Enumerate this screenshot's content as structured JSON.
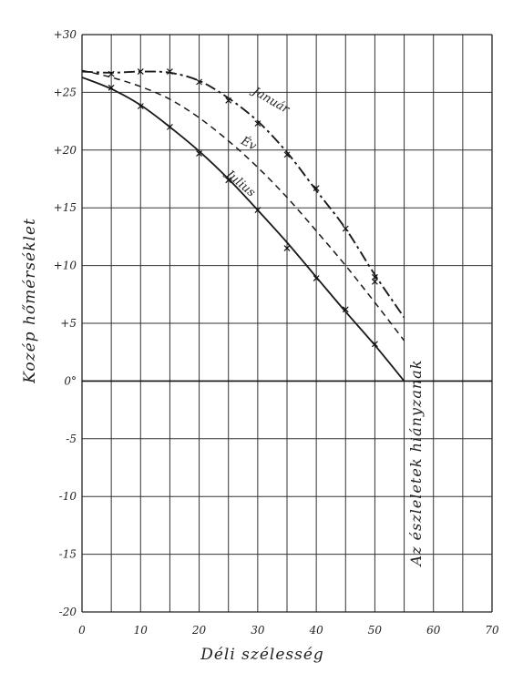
{
  "chart_data": {
    "type": "line",
    "xlabel": "Déli szélesség",
    "ylabel": "Kozép hőmérséklet",
    "xlim": [
      0,
      70
    ],
    "ylim": [
      -20,
      30
    ],
    "grid": true,
    "x_tick_labels": [
      "0",
      "10",
      "20",
      "30",
      "40",
      "50",
      "60",
      "70"
    ],
    "y_tick_labels": [
      "+30",
      "+25",
      "+20",
      "+15",
      "+10",
      "+5",
      "0°",
      "-5",
      "-10",
      "-15",
      "-20"
    ],
    "annotation": "Az észleletek hiányzanak",
    "series": [
      {
        "name": "Január",
        "style": "dash-dot",
        "x": [
          0,
          5,
          10,
          15,
          20,
          25,
          30,
          35,
          40,
          45,
          50,
          55
        ],
        "y": [
          26.8,
          26.7,
          26.8,
          26.7,
          26.0,
          24.5,
          22.5,
          19.8,
          16.5,
          13.2,
          9.2,
          5.5
        ],
        "markers": [
          [
            5,
            26.6
          ],
          [
            10,
            26.8
          ],
          [
            15,
            26.8
          ],
          [
            20,
            25.9
          ],
          [
            25,
            24.3
          ],
          [
            30,
            22.3
          ],
          [
            35,
            19.6
          ],
          [
            40,
            16.7
          ],
          [
            45,
            13.2
          ],
          [
            50,
            9.0
          ]
        ]
      },
      {
        "name": "Év",
        "style": "dashed",
        "x": [
          0,
          5,
          10,
          15,
          20,
          25,
          30,
          35,
          40,
          45,
          50,
          55
        ],
        "y": [
          26.9,
          26.3,
          25.5,
          24.4,
          22.8,
          20.8,
          18.5,
          15.9,
          13.0,
          10.0,
          6.8,
          3.5
        ],
        "markers": [
          [
            50,
            8.6
          ]
        ]
      },
      {
        "name": "Julius",
        "style": "solid",
        "x": [
          0,
          5,
          10,
          15,
          20,
          25,
          30,
          35,
          40,
          45,
          50,
          55
        ],
        "y": [
          26.3,
          25.3,
          23.9,
          22.0,
          19.9,
          17.5,
          14.8,
          12.0,
          9.0,
          6.0,
          3.1,
          0.0
        ],
        "markers": [
          [
            5,
            25.4
          ],
          [
            10,
            23.8
          ],
          [
            15,
            22.0
          ],
          [
            20,
            19.7
          ],
          [
            25,
            17.4
          ],
          [
            30,
            14.8
          ],
          [
            35,
            11.5
          ],
          [
            40,
            8.9
          ],
          [
            45,
            6.2
          ],
          [
            50,
            3.2
          ]
        ]
      }
    ]
  }
}
